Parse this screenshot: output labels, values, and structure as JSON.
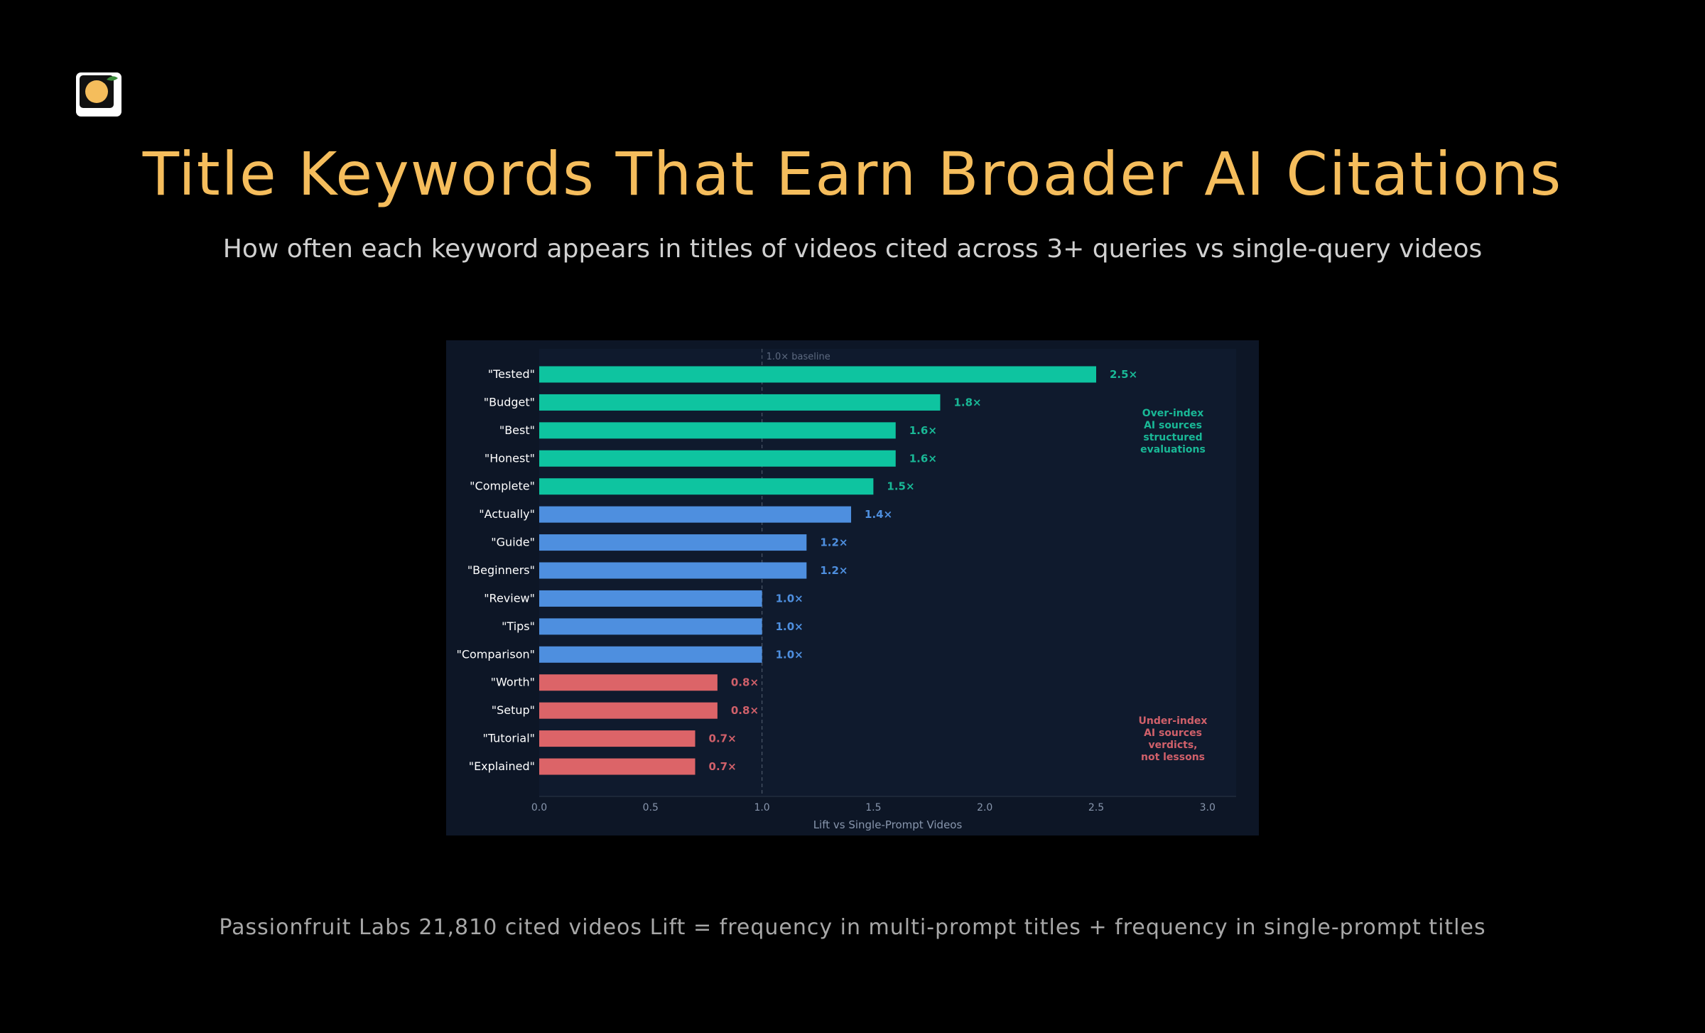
{
  "title": "Title Keywords That Earn Broader AI Citations",
  "subtitle": "How often each keyword appears in titles of videos cited across 3+ queries vs single-query videos",
  "footnote": "Passionfruit Labs 21,810 cited videos Lift = frequency in multi-prompt titles + frequency in single-prompt titles",
  "colors": {
    "background": "#000000",
    "title": "#f5bd5c",
    "panel": "#0d1626",
    "over": "#0ec4a0",
    "neutral": "#4e8fdf",
    "under": "#dc6468",
    "over_text": "#19b896",
    "under_text": "#d0606a",
    "tick": "#8896ad",
    "baseline": "#4a5566"
  },
  "chart_data": {
    "type": "bar",
    "orientation": "horizontal",
    "title": "",
    "xlabel": "Lift vs Single-Prompt Videos",
    "ylabel": "",
    "xlim": [
      0,
      3.0
    ],
    "xticks": [
      "0.0",
      "0.5",
      "1.0",
      "1.5",
      "2.0",
      "2.5",
      "3.0"
    ],
    "grid": false,
    "baseline": {
      "value": 1.0,
      "label": "1.0× baseline"
    },
    "categories": [
      "\"Tested\"",
      "\"Budget\"",
      "\"Best\"",
      "\"Honest\"",
      "\"Complete\"",
      "\"Actually\"",
      "\"Guide\"",
      "\"Beginners\"",
      "\"Review\"",
      "\"Tips\"",
      "\"Comparison\"",
      "\"Worth\"",
      "\"Setup\"",
      "\"Tutorial\"",
      "\"Explained\""
    ],
    "values": [
      2.5,
      1.8,
      1.6,
      1.6,
      1.5,
      1.4,
      1.2,
      1.2,
      1.0,
      1.0,
      1.0,
      0.8,
      0.8,
      0.7,
      0.7
    ],
    "value_labels": [
      "2.5×",
      "1.8×",
      "1.6×",
      "1.6×",
      "1.5×",
      "1.4×",
      "1.2×",
      "1.2×",
      "1.0×",
      "1.0×",
      "1.0×",
      "0.8×",
      "0.8×",
      "0.7×",
      "0.7×"
    ],
    "groups": [
      "over",
      "over",
      "over",
      "over",
      "over",
      "neutral",
      "neutral",
      "neutral",
      "neutral",
      "neutral",
      "neutral",
      "under",
      "under",
      "under",
      "under"
    ],
    "annotations": [
      {
        "group": "over",
        "lines": [
          "Over-index",
          "AI sources",
          "structured",
          "evaluations"
        ]
      },
      {
        "group": "under",
        "lines": [
          "Under-index",
          "AI sources",
          "verdicts,",
          "not lessons"
        ]
      }
    ]
  }
}
